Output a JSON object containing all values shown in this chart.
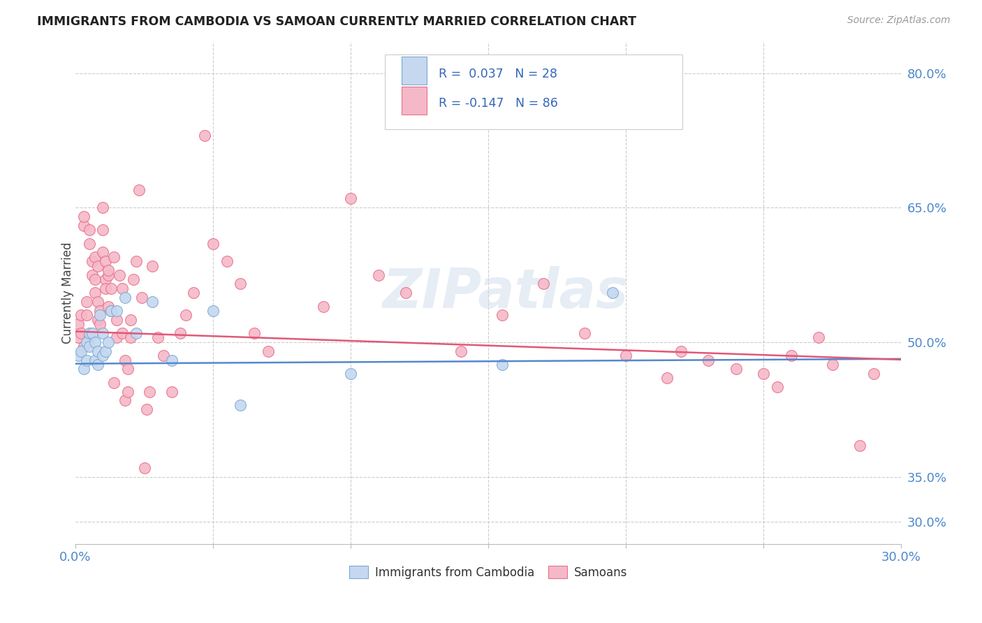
{
  "title": "IMMIGRANTS FROM CAMBODIA VS SAMOAN CURRENTLY MARRIED CORRELATION CHART",
  "source": "Source: ZipAtlas.com",
  "ylabel": "Currently Married",
  "legend1_label": "Immigrants from Cambodia",
  "legend2_label": "Samoans",
  "R1": 0.037,
  "N1": 28,
  "R2": -0.147,
  "N2": 86,
  "xlim": [
    0.0,
    0.3
  ],
  "ylim": [
    0.275,
    0.835
  ],
  "yticks": [
    0.8,
    0.65,
    0.5,
    0.35,
    0.3
  ],
  "xticks": [
    0.0,
    0.05,
    0.1,
    0.15,
    0.2,
    0.25,
    0.3
  ],
  "color_blue_fill": "#c5d8f0",
  "color_blue_edge": "#7baad4",
  "color_pink_fill": "#f5b8c8",
  "color_pink_edge": "#e8708a",
  "line_blue": "#5588cc",
  "line_pink": "#e05878",
  "watermark": "ZIPatlas",
  "cam_line_intercept": 0.476,
  "cam_line_slope": 0.018,
  "sam_line_intercept": 0.512,
  "sam_line_slope": -0.105,
  "cambodia_x": [
    0.001,
    0.002,
    0.003,
    0.004,
    0.004,
    0.005,
    0.005,
    0.006,
    0.007,
    0.007,
    0.008,
    0.008,
    0.009,
    0.01,
    0.01,
    0.011,
    0.012,
    0.013,
    0.015,
    0.018,
    0.022,
    0.028,
    0.035,
    0.05,
    0.06,
    0.1,
    0.155,
    0.195
  ],
  "cambodia_y": [
    0.485,
    0.49,
    0.47,
    0.5,
    0.48,
    0.51,
    0.495,
    0.51,
    0.5,
    0.48,
    0.49,
    0.475,
    0.53,
    0.51,
    0.485,
    0.49,
    0.5,
    0.535,
    0.535,
    0.55,
    0.51,
    0.545,
    0.48,
    0.535,
    0.43,
    0.465,
    0.475,
    0.555
  ],
  "samoan_x": [
    0.001,
    0.001,
    0.002,
    0.002,
    0.003,
    0.003,
    0.003,
    0.004,
    0.004,
    0.005,
    0.005,
    0.005,
    0.006,
    0.006,
    0.007,
    0.007,
    0.007,
    0.008,
    0.008,
    0.008,
    0.009,
    0.009,
    0.01,
    0.01,
    0.01,
    0.011,
    0.011,
    0.011,
    0.012,
    0.012,
    0.012,
    0.013,
    0.013,
    0.014,
    0.014,
    0.015,
    0.015,
    0.016,
    0.017,
    0.017,
    0.018,
    0.018,
    0.019,
    0.019,
    0.02,
    0.02,
    0.021,
    0.022,
    0.023,
    0.024,
    0.025,
    0.026,
    0.027,
    0.028,
    0.03,
    0.032,
    0.035,
    0.038,
    0.04,
    0.043,
    0.047,
    0.05,
    0.055,
    0.06,
    0.065,
    0.07,
    0.09,
    0.1,
    0.11,
    0.12,
    0.14,
    0.155,
    0.17,
    0.185,
    0.2,
    0.215,
    0.22,
    0.23,
    0.24,
    0.25,
    0.255,
    0.26,
    0.27,
    0.275,
    0.285,
    0.29
  ],
  "samoan_y": [
    0.505,
    0.52,
    0.51,
    0.53,
    0.495,
    0.63,
    0.64,
    0.53,
    0.545,
    0.505,
    0.61,
    0.625,
    0.575,
    0.59,
    0.555,
    0.57,
    0.595,
    0.525,
    0.545,
    0.585,
    0.52,
    0.535,
    0.6,
    0.625,
    0.65,
    0.57,
    0.59,
    0.56,
    0.575,
    0.54,
    0.58,
    0.535,
    0.56,
    0.595,
    0.455,
    0.505,
    0.525,
    0.575,
    0.56,
    0.51,
    0.435,
    0.48,
    0.445,
    0.47,
    0.505,
    0.525,
    0.57,
    0.59,
    0.67,
    0.55,
    0.36,
    0.425,
    0.445,
    0.585,
    0.505,
    0.485,
    0.445,
    0.51,
    0.53,
    0.555,
    0.73,
    0.61,
    0.59,
    0.565,
    0.51,
    0.49,
    0.54,
    0.66,
    0.575,
    0.555,
    0.49,
    0.53,
    0.565,
    0.51,
    0.485,
    0.46,
    0.49,
    0.48,
    0.47,
    0.465,
    0.45,
    0.485,
    0.505,
    0.475,
    0.385,
    0.465
  ]
}
